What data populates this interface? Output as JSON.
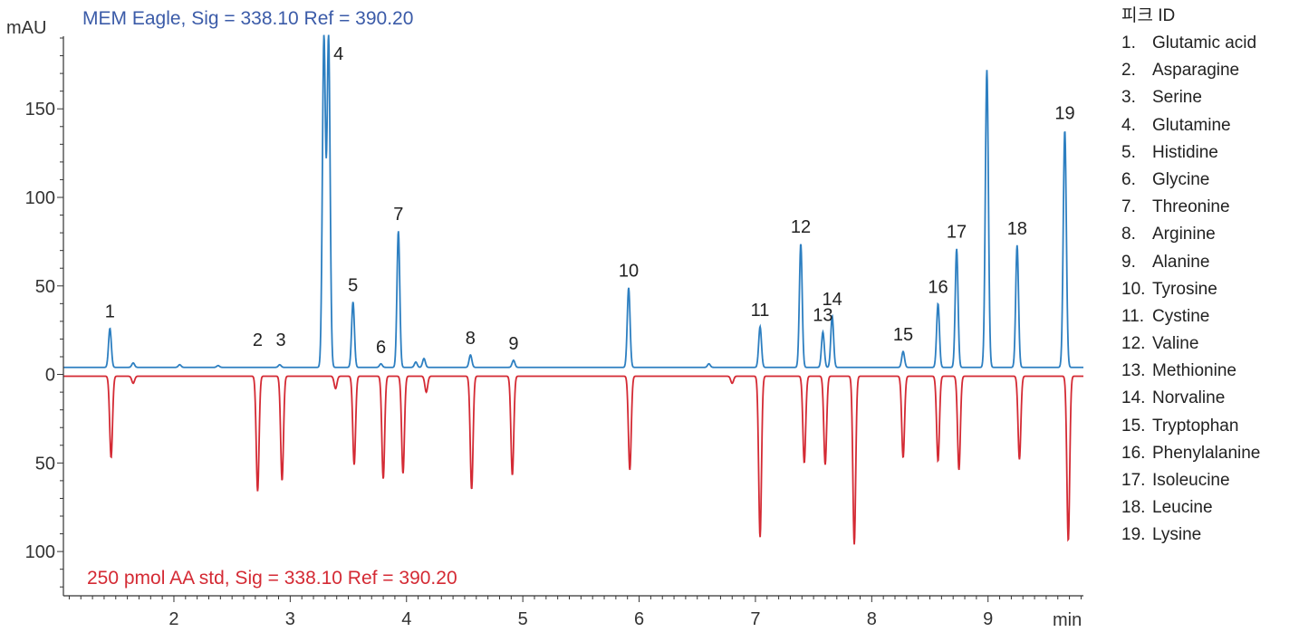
{
  "chart_data": {
    "type": "line",
    "xunit": "min",
    "yunit": "mAU",
    "xlim": [
      1.05,
      9.82
    ],
    "x_ticks": [
      2,
      3,
      4,
      5,
      6,
      7,
      8,
      9
    ],
    "x_tick_labels": [
      "2",
      "3",
      "4",
      "5",
      "6",
      "7",
      "8",
      "9"
    ],
    "y_ticks": [
      150,
      100,
      50,
      0,
      -50,
      -100
    ],
    "y_tick_labels": [
      "150",
      "100",
      "50",
      "0",
      "50",
      "100"
    ],
    "ylim": [
      -125,
      190
    ],
    "series": [
      {
        "name": "MEM Eagle, Sig = 338.10 Ref = 390.20",
        "color": "#2d7fc1",
        "title_color": "#3b5ba8",
        "direction": "up",
        "baseline": 4,
        "peaks": [
          {
            "x": 1.45,
            "y": 26,
            "label": "1"
          },
          {
            "x": 1.65,
            "y": 6.5
          },
          {
            "x": 2.05,
            "y": 5.5
          },
          {
            "x": 2.38,
            "y": 5
          },
          {
            "x": 2.91,
            "y": 5.5
          },
          {
            "x": 3.29,
            "y": 190
          },
          {
            "x": 3.33,
            "y": 190,
            "label": "4"
          },
          {
            "x": 3.54,
            "y": 41,
            "label": "5"
          },
          {
            "x": 3.78,
            "y": 6,
            "label": "6"
          },
          {
            "x": 3.93,
            "y": 81,
            "label": "7"
          },
          {
            "x": 4.08,
            "y": 7
          },
          {
            "x": 4.15,
            "y": 9
          },
          {
            "x": 4.55,
            "y": 11,
            "label": "8"
          },
          {
            "x": 4.92,
            "y": 8,
            "label": "9"
          },
          {
            "x": 5.91,
            "y": 49,
            "label": "10"
          },
          {
            "x": 6.6,
            "y": 6
          },
          {
            "x": 7.04,
            "y": 27,
            "label": "11"
          },
          {
            "x": 7.39,
            "y": 74,
            "label": "12"
          },
          {
            "x": 7.58,
            "y": 24,
            "label": "13"
          },
          {
            "x": 7.66,
            "y": 33,
            "label": "14"
          },
          {
            "x": 8.27,
            "y": 13,
            "label": "15"
          },
          {
            "x": 8.57,
            "y": 40,
            "label": "16"
          },
          {
            "x": 8.73,
            "y": 71,
            "label": "17"
          },
          {
            "x": 8.99,
            "y": 172
          },
          {
            "x": 9.25,
            "y": 73,
            "label": "18"
          },
          {
            "x": 9.66,
            "y": 138,
            "label": "19"
          }
        ]
      },
      {
        "name": "250 pmol AA std, Sig = 338.10 Ref = 390.20",
        "color": "#d42a34",
        "title_color": "#d42a34",
        "direction": "down",
        "baseline": -1,
        "peaks": [
          {
            "x": 1.46,
            "y": -47
          },
          {
            "x": 1.65,
            "y": -5
          },
          {
            "x": 2.72,
            "y": -66
          },
          {
            "x": 2.93,
            "y": -60
          },
          {
            "x": 3.39,
            "y": -8
          },
          {
            "x": 3.55,
            "y": -51
          },
          {
            "x": 3.8,
            "y": -59
          },
          {
            "x": 3.97,
            "y": -56
          },
          {
            "x": 4.17,
            "y": -10
          },
          {
            "x": 4.56,
            "y": -65
          },
          {
            "x": 4.91,
            "y": -57
          },
          {
            "x": 5.92,
            "y": -54
          },
          {
            "x": 6.8,
            "y": -5
          },
          {
            "x": 7.04,
            "y": -92
          },
          {
            "x": 7.42,
            "y": -50
          },
          {
            "x": 7.6,
            "y": -51
          },
          {
            "x": 7.85,
            "y": -96
          },
          {
            "x": 8.27,
            "y": -47
          },
          {
            "x": 8.57,
            "y": -49
          },
          {
            "x": 8.75,
            "y": -54
          },
          {
            "x": 9.27,
            "y": -48
          },
          {
            "x": 9.69,
            "y": -94
          }
        ]
      }
    ],
    "legend": {
      "title": "피크 ID",
      "placement": "right",
      "items": [
        {
          "num": "1.",
          "name": "Glutamic acid"
        },
        {
          "num": "2.",
          "name": "Asparagine"
        },
        {
          "num": "3.",
          "name": "Serine"
        },
        {
          "num": "4.",
          "name": "Glutamine"
        },
        {
          "num": "5.",
          "name": "Histidine"
        },
        {
          "num": "6.",
          "name": "Glycine"
        },
        {
          "num": "7.",
          "name": "Threonine"
        },
        {
          "num": "8.",
          "name": "Arginine"
        },
        {
          "num": "9.",
          "name": "Alanine"
        },
        {
          "num": "10.",
          "name": "Tyrosine"
        },
        {
          "num": "11.",
          "name": "Cystine"
        },
        {
          "num": "12.",
          "name": "Valine"
        },
        {
          "num": "13.",
          "name": "Methionine"
        },
        {
          "num": "14.",
          "name": "Norvaline"
        },
        {
          "num": "15.",
          "name": "Tryptophan"
        },
        {
          "num": "16.",
          "name": "Phenylalanine"
        },
        {
          "num": "17.",
          "name": "Isoleucine"
        },
        {
          "num": "18.",
          "name": "Leucine"
        },
        {
          "num": "19.",
          "name": "Lysine"
        }
      ]
    },
    "extra_peak_labels": [
      {
        "x": 2.72,
        "y": 10,
        "label": "2"
      },
      {
        "x": 2.92,
        "y": 10,
        "label": "3"
      }
    ]
  }
}
